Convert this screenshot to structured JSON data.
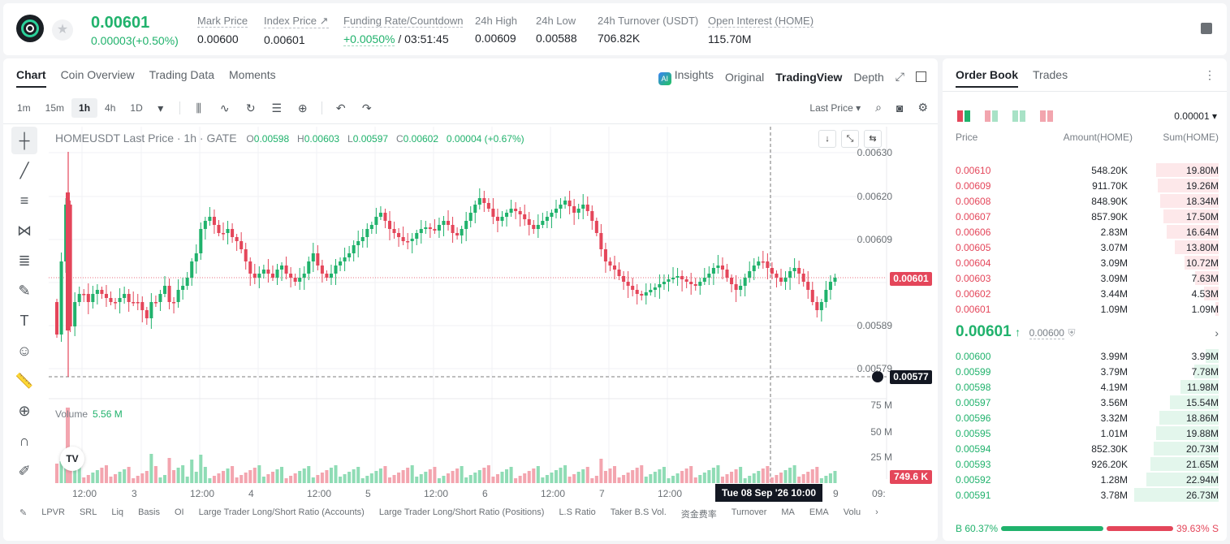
{
  "header": {
    "last_price": "0.00601",
    "change": "0.00003(+0.50%)",
    "stats": [
      {
        "label": "Mark Price",
        "value": "0.00600"
      },
      {
        "label": "Index Price ↗",
        "value": "0.00601"
      },
      {
        "label": "Funding Rate/Countdown",
        "value_green": "+0.0050%",
        "value": " / 03:51:45"
      },
      {
        "label": "24h High",
        "value": "0.00609"
      },
      {
        "label": "24h Low",
        "value": "0.00588"
      },
      {
        "label": "24h Turnover (USDT)",
        "value": "706.82K"
      },
      {
        "label": "Open Interest (HOME)",
        "value": "115.70M"
      }
    ]
  },
  "chart_tabs": [
    "Chart",
    "Coin Overview",
    "Trading Data",
    "Moments"
  ],
  "chart_views": {
    "insights": "Insights",
    "original": "Original",
    "tradingview": "TradingView",
    "depth": "Depth"
  },
  "intervals": [
    "1m",
    "15m",
    "1h",
    "4h",
    "1D"
  ],
  "active_interval": "1h",
  "price_type": "Last Price ▾",
  "legend": {
    "symbol": "HOMEUSDT Last Price · 1h · GATE",
    "o_key": "O",
    "o": "0.00598",
    "h_key": "H",
    "h": "0.00603",
    "l_key": "L",
    "l": "0.00597",
    "c_key": "C",
    "c": "0.00602",
    "chg": "0.00004 (+0.67%)"
  },
  "volume_label": "Volume",
  "volume_value": "5.56 M",
  "price_axis": [
    "0.00630",
    "0.00620",
    "0.00609",
    "0.00601",
    "0.00589",
    "0.00579"
  ],
  "current_price_tag": "0.00601",
  "crosshair_price_tag": "0.00577",
  "volume_axis": [
    "75 M",
    "50 M",
    "25 M"
  ],
  "volume_tag": "749.6 K",
  "time_axis": [
    "12:00",
    "3",
    "12:00",
    "4",
    "12:00",
    "5",
    "12:00",
    "6",
    "12:00",
    "7",
    "12:00",
    "9",
    "09:"
  ],
  "crosshair_time": "Tue 08 Sep '26   10:00",
  "indicators": [
    "LPVR",
    "SRL",
    "Liq",
    "Basis",
    "OI",
    "Large Trader Long/Short Ratio (Accounts)",
    "Large Trader Long/Short Ratio (Positions)",
    "L.S Ratio",
    "Taker B.S Vol.",
    "资金费率",
    "Turnover",
    "MA",
    "EMA",
    "Volu"
  ],
  "chart_data": {
    "type": "candlestick",
    "title": "HOMEUSDT Last Price · 1h · GATE",
    "ylim": [
      0.00575,
      0.00632
    ],
    "candles": []
  },
  "orderbook": {
    "tabs": [
      "Order Book",
      "Trades"
    ],
    "precision": "0.00001 ▾",
    "headers": {
      "price": "Price",
      "amount": "Amount(HOME)",
      "sum": "Sum(HOME)"
    },
    "asks": [
      {
        "p": "0.00610",
        "a": "548.20K",
        "s": "19.80M",
        "w": 0.74
      },
      {
        "p": "0.00609",
        "a": "911.70K",
        "s": "19.26M",
        "w": 0.72
      },
      {
        "p": "0.00608",
        "a": "848.90K",
        "s": "18.34M",
        "w": 0.69
      },
      {
        "p": "0.00607",
        "a": "857.90K",
        "s": "17.50M",
        "w": 0.65
      },
      {
        "p": "0.00606",
        "a": "2.83M",
        "s": "16.64M",
        "w": 0.62
      },
      {
        "p": "0.00605",
        "a": "3.07M",
        "s": "13.80M",
        "w": 0.52
      },
      {
        "p": "0.00604",
        "a": "3.09M",
        "s": "10.72M",
        "w": 0.4
      },
      {
        "p": "0.00603",
        "a": "3.09M",
        "s": "7.63M",
        "w": 0.28
      },
      {
        "p": "0.00602",
        "a": "3.44M",
        "s": "4.53M",
        "w": 0.17
      },
      {
        "p": "0.00601",
        "a": "1.09M",
        "s": "1.09M",
        "w": 0.04
      }
    ],
    "mid_price": "0.00601",
    "mark_price": "0.00600",
    "bids": [
      {
        "p": "0.00600",
        "a": "3.99M",
        "s": "3.99M",
        "w": 0.15
      },
      {
        "p": "0.00599",
        "a": "3.79M",
        "s": "7.78M",
        "w": 0.29
      },
      {
        "p": "0.00598",
        "a": "4.19M",
        "s": "11.98M",
        "w": 0.45
      },
      {
        "p": "0.00597",
        "a": "3.56M",
        "s": "15.54M",
        "w": 0.58
      },
      {
        "p": "0.00596",
        "a": "3.32M",
        "s": "18.86M",
        "w": 0.7
      },
      {
        "p": "0.00595",
        "a": "1.01M",
        "s": "19.88M",
        "w": 0.74
      },
      {
        "p": "0.00594",
        "a": "852.30K",
        "s": "20.73M",
        "w": 0.77
      },
      {
        "p": "0.00593",
        "a": "926.20K",
        "s": "21.65M",
        "w": 0.81
      },
      {
        "p": "0.00592",
        "a": "1.28M",
        "s": "22.94M",
        "w": 0.86
      },
      {
        "p": "0.00591",
        "a": "3.78M",
        "s": "26.73M",
        "w": 1.0
      }
    ],
    "buy_ratio": "B 60.37%",
    "sell_ratio": "39.63% S",
    "buy_frac": 0.6037
  },
  "colors": {
    "up": "#20b26c",
    "down": "#e4465a"
  }
}
